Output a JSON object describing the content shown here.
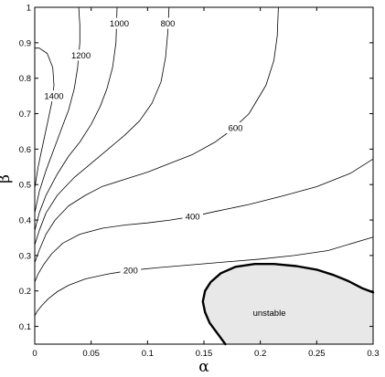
{
  "chart_data": {
    "type": "line",
    "title": "",
    "xlabel": "α",
    "ylabel": "β",
    "xlim": [
      0,
      0.3
    ],
    "ylim": [
      0.05,
      1
    ],
    "grid": false,
    "x_ticks": [
      0,
      0.05,
      0.1,
      0.15,
      0.2,
      0.25,
      0.3
    ],
    "x_tick_labels": [
      "0",
      "0.05",
      "0.1",
      "0.15",
      "0.2",
      "0.25",
      "0.3"
    ],
    "y_ticks": [
      0.1,
      0.2,
      0.3,
      0.4,
      0.5,
      0.6,
      0.7,
      0.8,
      0.9,
      1
    ],
    "y_tick_labels": [
      "0.1",
      "0.2",
      "0.3",
      "0.4",
      "0.5",
      "0.6",
      "0.7",
      "0.8",
      "0.9",
      "1"
    ],
    "series": [
      {
        "name": "200",
        "label": "200",
        "label_at": [
          0.085,
          0.258
        ],
        "points": [
          [
            0.0,
            0.13
          ],
          [
            0.002,
            0.142
          ],
          [
            0.006,
            0.158
          ],
          [
            0.012,
            0.178
          ],
          [
            0.02,
            0.198
          ],
          [
            0.03,
            0.216
          ],
          [
            0.045,
            0.234
          ],
          [
            0.065,
            0.248
          ],
          [
            0.085,
            0.258
          ],
          [
            0.11,
            0.266
          ],
          [
            0.14,
            0.274
          ],
          [
            0.17,
            0.282
          ],
          [
            0.2,
            0.29
          ],
          [
            0.23,
            0.3
          ],
          [
            0.26,
            0.314
          ],
          [
            0.3,
            0.352
          ]
        ]
      },
      {
        "name": "400",
        "label": "400",
        "label_at": [
          0.14,
          0.41
        ],
        "points": [
          [
            0.0,
            0.225
          ],
          [
            0.003,
            0.248
          ],
          [
            0.008,
            0.275
          ],
          [
            0.015,
            0.305
          ],
          [
            0.025,
            0.335
          ],
          [
            0.04,
            0.36
          ],
          [
            0.06,
            0.377
          ],
          [
            0.08,
            0.386
          ],
          [
            0.1,
            0.392
          ],
          [
            0.12,
            0.4
          ],
          [
            0.14,
            0.41
          ],
          [
            0.16,
            0.424
          ],
          [
            0.19,
            0.444
          ],
          [
            0.22,
            0.468
          ],
          [
            0.25,
            0.494
          ],
          [
            0.28,
            0.532
          ],
          [
            0.3,
            0.572
          ]
        ]
      },
      {
        "name": "600",
        "label": "600",
        "label_at": [
          0.178,
          0.66
        ],
        "points": [
          [
            0.0,
            0.28
          ],
          [
            0.004,
            0.315
          ],
          [
            0.01,
            0.36
          ],
          [
            0.018,
            0.4
          ],
          [
            0.03,
            0.44
          ],
          [
            0.045,
            0.47
          ],
          [
            0.06,
            0.495
          ],
          [
            0.08,
            0.515
          ],
          [
            0.1,
            0.535
          ],
          [
            0.12,
            0.56
          ],
          [
            0.14,
            0.585
          ],
          [
            0.16,
            0.62
          ],
          [
            0.175,
            0.655
          ],
          [
            0.19,
            0.7
          ],
          [
            0.205,
            0.78
          ],
          [
            0.212,
            0.85
          ],
          [
            0.215,
            0.92
          ],
          [
            0.216,
            1.0
          ]
        ]
      },
      {
        "name": "800",
        "label": "800",
        "label_at": [
          0.118,
          0.955
        ],
        "points": [
          [
            0.0,
            0.33
          ],
          [
            0.004,
            0.37
          ],
          [
            0.01,
            0.42
          ],
          [
            0.02,
            0.47
          ],
          [
            0.035,
            0.52
          ],
          [
            0.05,
            0.56
          ],
          [
            0.065,
            0.6
          ],
          [
            0.08,
            0.64
          ],
          [
            0.093,
            0.68
          ],
          [
            0.104,
            0.73
          ],
          [
            0.112,
            0.79
          ],
          [
            0.116,
            0.86
          ],
          [
            0.118,
            0.93
          ],
          [
            0.119,
            1.0
          ]
        ]
      },
      {
        "name": "1000",
        "label": "1000",
        "label_at": [
          0.075,
          0.955
        ],
        "points": [
          [
            0.0,
            0.37
          ],
          [
            0.004,
            0.42
          ],
          [
            0.01,
            0.47
          ],
          [
            0.02,
            0.53
          ],
          [
            0.03,
            0.58
          ],
          [
            0.04,
            0.62
          ],
          [
            0.05,
            0.67
          ],
          [
            0.058,
            0.72
          ],
          [
            0.064,
            0.77
          ],
          [
            0.069,
            0.83
          ],
          [
            0.072,
            0.9
          ],
          [
            0.073,
            1.0
          ]
        ]
      },
      {
        "name": "1200",
        "label": "1200",
        "label_at": [
          0.041,
          0.865
        ],
        "points": [
          [
            0.0,
            0.42
          ],
          [
            0.004,
            0.48
          ],
          [
            0.01,
            0.54
          ],
          [
            0.017,
            0.6
          ],
          [
            0.024,
            0.66
          ],
          [
            0.03,
            0.71
          ],
          [
            0.035,
            0.77
          ],
          [
            0.038,
            0.83
          ],
          [
            0.04,
            0.9
          ],
          [
            0.04,
            0.95
          ],
          [
            0.039,
            1.0
          ]
        ]
      },
      {
        "name": "1400",
        "label": "1400",
        "label_at": [
          0.017,
          0.75
        ],
        "points": [
          [
            0.0,
            0.49
          ],
          [
            0.003,
            0.55
          ],
          [
            0.007,
            0.61
          ],
          [
            0.011,
            0.67
          ],
          [
            0.015,
            0.73
          ],
          [
            0.017,
            0.78
          ],
          [
            0.016,
            0.83
          ],
          [
            0.011,
            0.87
          ],
          [
            0.004,
            0.885
          ],
          [
            0.0,
            0.885
          ]
        ]
      }
    ],
    "regions": [
      {
        "name": "unstable",
        "label": "unstable",
        "label_at": [
          0.208,
          0.138
        ],
        "fill": "#e8e8e8",
        "stroke": "#000000",
        "boundary": [
          [
            0.169,
            0.05
          ],
          [
            0.162,
            0.08
          ],
          [
            0.155,
            0.11
          ],
          [
            0.151,
            0.14
          ],
          [
            0.149,
            0.17
          ],
          [
            0.151,
            0.2
          ],
          [
            0.156,
            0.225
          ],
          [
            0.165,
            0.25
          ],
          [
            0.178,
            0.268
          ],
          [
            0.195,
            0.276
          ],
          [
            0.212,
            0.276
          ],
          [
            0.232,
            0.27
          ],
          [
            0.25,
            0.26
          ],
          [
            0.265,
            0.245
          ],
          [
            0.278,
            0.228
          ],
          [
            0.29,
            0.208
          ],
          [
            0.3,
            0.196
          ],
          [
            0.3,
            0.05
          ]
        ]
      }
    ]
  }
}
